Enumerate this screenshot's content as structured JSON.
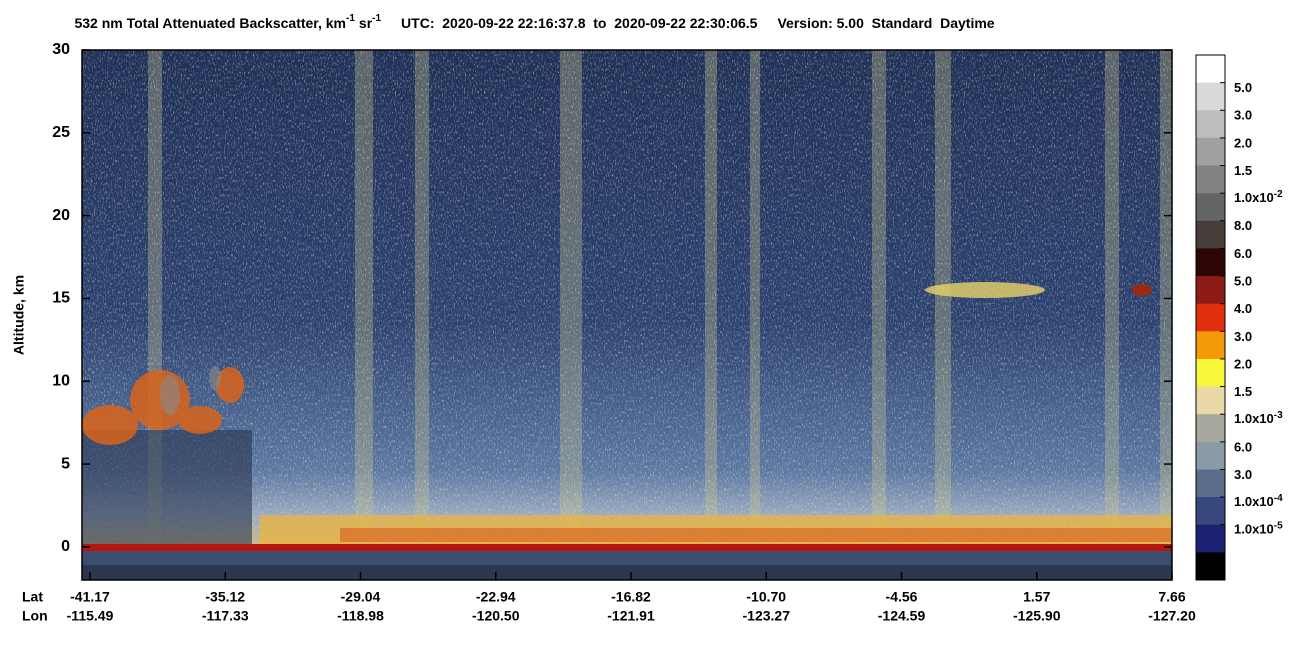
{
  "chart_data": {
    "type": "heatmap",
    "title": {
      "main": "532 nm Total Attenuated Backscatter, km",
      "exp1": "-1",
      "unit2": "sr",
      "exp2": "-1",
      "utc": "UTC:  2020-09-22 22:16:37.8  to  2020-09-22 22:30:06.5",
      "version": "Version: 5.00  Standard  Daytime"
    },
    "ylabel": "Altitude, km",
    "ylim": [
      -2,
      30
    ],
    "yticks": [
      0,
      5,
      10,
      15,
      20,
      25,
      30
    ],
    "x_rows": [
      {
        "name": "Lat",
        "labels": [
          "-41.17",
          "-35.12",
          "-29.04",
          "-22.94",
          "-16.82",
          "-10.70",
          "-4.56",
          "1.57",
          "7.66"
        ]
      },
      {
        "name": "Lon",
        "labels": [
          "-115.49",
          "-117.33",
          "-118.98",
          "-120.50",
          "-121.91",
          "-123.27",
          "-124.59",
          "-125.90",
          "-127.20"
        ]
      }
    ],
    "colorbar": {
      "colors": [
        "#ffffff",
        "#dadada",
        "#bdbdbd",
        "#a0a0a0",
        "#838383",
        "#656565",
        "#473d39",
        "#2e0505",
        "#8c1c14",
        "#e2300f",
        "#f49a0a",
        "#f8f83a",
        "#ead8a8",
        "#a8a89e",
        "#8a9aa6",
        "#5a6e8c",
        "#36487e",
        "#1c2070",
        "#000000"
      ],
      "labels": [
        "5.0",
        "3.0",
        "2.0",
        "1.5",
        {
          "base": "1.0x10",
          "exp": "-2"
        },
        "8.0",
        "6.0",
        "5.0",
        "4.0",
        "3.0",
        "2.0",
        "1.5",
        {
          "base": "1.0x10",
          "exp": "-3"
        },
        "6.0",
        "3.0",
        {
          "base": "1.0x10",
          "exp": "-4"
        },
        {
          "base": "1.0x10",
          "exp": "-5"
        }
      ]
    }
  }
}
